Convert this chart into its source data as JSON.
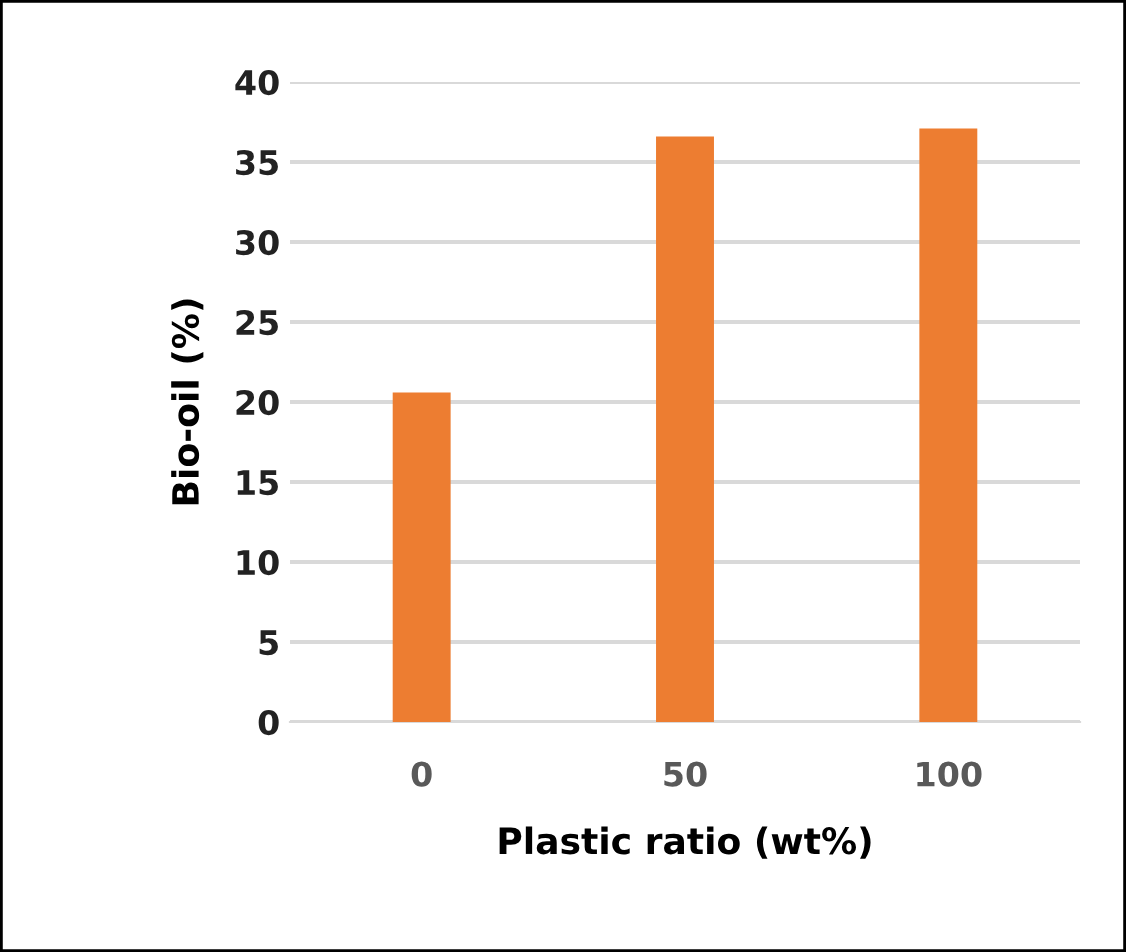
{
  "chart_data": {
    "type": "bar",
    "xlabel": "Plastic ratio (wt%)",
    "ylabel": "Bio-oil (%)",
    "categories": [
      "0",
      "50",
      "100"
    ],
    "values": [
      20.6,
      36.6,
      37.1
    ],
    "color": "#ed7d31",
    "ylim": [
      0,
      40
    ],
    "yticks": [
      0,
      5,
      10,
      15,
      20,
      25,
      30,
      35,
      40
    ],
    "grid": "y"
  }
}
